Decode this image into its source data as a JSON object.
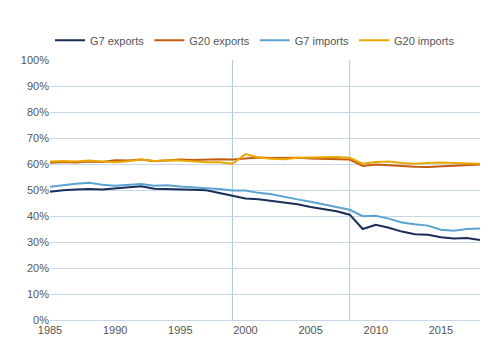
{
  "chart_data": {
    "type": "line",
    "x": [
      1985,
      1986,
      1987,
      1988,
      1989,
      1990,
      1991,
      1992,
      1993,
      1994,
      1995,
      1996,
      1997,
      1998,
      1999,
      2000,
      2001,
      2002,
      2003,
      2004,
      2005,
      2006,
      2007,
      2008,
      2009,
      2010,
      2011,
      2012,
      2013,
      2014,
      2015,
      2016,
      2017,
      2018
    ],
    "series": [
      {
        "name": "G7 exports",
        "color": "#1a2e5a",
        "values": [
          0.493,
          0.499,
          0.502,
          0.504,
          0.502,
          0.506,
          0.511,
          0.514,
          0.505,
          0.504,
          0.504,
          0.501,
          0.499,
          0.489,
          0.479,
          0.467,
          0.464,
          0.458,
          0.452,
          0.445,
          0.435,
          0.426,
          0.418,
          0.405,
          0.35,
          0.366,
          0.355,
          0.34,
          0.33,
          0.328,
          0.318,
          0.313,
          0.315,
          0.308
        ]
      },
      {
        "name": "G20 exports",
        "color": "#c55a11",
        "values": [
          0.605,
          0.608,
          0.606,
          0.61,
          0.608,
          0.614,
          0.613,
          0.617,
          0.611,
          0.614,
          0.617,
          0.615,
          0.617,
          0.618,
          0.617,
          0.622,
          0.625,
          0.623,
          0.623,
          0.624,
          0.621,
          0.619,
          0.617,
          0.617,
          0.592,
          0.598,
          0.595,
          0.591,
          0.589,
          0.588,
          0.591,
          0.592,
          0.596,
          0.598
        ]
      },
      {
        "name": "G7 imports",
        "color": "#5ba3d0",
        "values": [
          0.512,
          0.519,
          0.524,
          0.528,
          0.52,
          0.516,
          0.519,
          0.523,
          0.516,
          0.518,
          0.513,
          0.511,
          0.507,
          0.504,
          0.498,
          0.498,
          0.489,
          0.484,
          0.473,
          0.464,
          0.455,
          0.444,
          0.435,
          0.424,
          0.399,
          0.401,
          0.39,
          0.375,
          0.368,
          0.363,
          0.347,
          0.343,
          0.35,
          0.352
        ]
      },
      {
        "name": "G20 imports",
        "color": "#e8a800",
        "values": [
          0.61,
          0.612,
          0.61,
          0.613,
          0.61,
          0.607,
          0.611,
          0.617,
          0.612,
          0.614,
          0.613,
          0.609,
          0.607,
          0.607,
          0.601,
          0.638,
          0.625,
          0.62,
          0.618,
          0.624,
          0.625,
          0.625,
          0.627,
          0.624,
          0.601,
          0.608,
          0.61,
          0.604,
          0.601,
          0.604,
          0.606,
          0.604,
          0.603,
          0.601
        ]
      }
    ],
    "vlines": [
      {
        "x": 1999,
        "color": "#a8c8e0"
      },
      {
        "x": 2008,
        "color": "#a8c8e0"
      }
    ],
    "xlim": [
      1985,
      2018
    ],
    "xticks": [
      1985,
      1990,
      1995,
      2000,
      2005,
      2010,
      2015
    ],
    "ylim": [
      0.0,
      1.0
    ],
    "yticks": [
      {
        "value": 0.0,
        "label": "0%"
      },
      {
        "value": 0.1,
        "label": "10%"
      },
      {
        "value": 0.2,
        "label": "20%"
      },
      {
        "value": 0.3,
        "label": "30%"
      },
      {
        "value": 0.4,
        "label": "40%"
      },
      {
        "value": 0.5,
        "label": "50%"
      },
      {
        "value": 0.6,
        "label": "60%"
      },
      {
        "value": 0.7,
        "label": "70%"
      },
      {
        "value": 0.8,
        "label": "80%"
      },
      {
        "value": 0.9,
        "label": "90%"
      },
      {
        "value": 1.0,
        "label": "100%"
      }
    ],
    "grid": true,
    "legend": "upper left"
  }
}
